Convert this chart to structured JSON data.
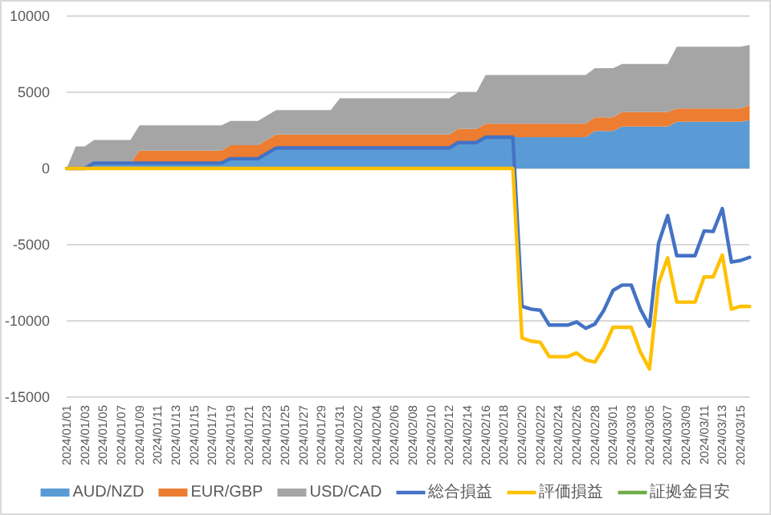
{
  "chart_data": {
    "type": "area",
    "stacked": true,
    "grid": "y",
    "legend": "bottom",
    "ylim": [
      -15000,
      10000
    ],
    "yticks": [
      -15000,
      -10000,
      -5000,
      0,
      5000,
      10000
    ],
    "categories": [
      "2024/01/01",
      null,
      "2024/01/03",
      null,
      "2024/01/05",
      null,
      "2024/01/07",
      null,
      "2024/01/09",
      null,
      "2024/01/11",
      null,
      "2024/01/13",
      null,
      "2024/01/15",
      null,
      "2024/01/17",
      null,
      "2024/01/19",
      null,
      "2024/01/21",
      null,
      "2024/01/23",
      null,
      "2024/01/25",
      null,
      "2024/01/27",
      null,
      "2024/01/29",
      null,
      "2024/01/31",
      null,
      "2024/02/02",
      null,
      "2024/02/04",
      null,
      "2024/02/06",
      null,
      "2024/02/08",
      null,
      "2024/02/10",
      null,
      "2024/02/12",
      null,
      "2024/02/14",
      null,
      "2024/02/16",
      null,
      "2024/02/18",
      null,
      "2024/02/20",
      null,
      "2024/02/22",
      null,
      "2024/02/24",
      null,
      "2024/02/26",
      null,
      "2024/02/28",
      null,
      "2024/03/01",
      null,
      "2024/03/03",
      null,
      "2024/03/05",
      null,
      "2024/03/07",
      null,
      "2024/03/09",
      null,
      "2024/03/11",
      null,
      "2024/03/13",
      null,
      "2024/03/15",
      null
    ],
    "series": [
      {
        "name": "AUD/NZD",
        "color": "#5b9bd5",
        "values": [
          0,
          0,
          0,
          350,
          350,
          350,
          350,
          350,
          350,
          350,
          350,
          350,
          350,
          350,
          350,
          350,
          350,
          350,
          640,
          640,
          640,
          640,
          990,
          1340,
          1340,
          1340,
          1340,
          1340,
          1340,
          1340,
          1340,
          1340,
          1340,
          1340,
          1340,
          1340,
          1340,
          1340,
          1340,
          1340,
          1340,
          1340,
          1340,
          1700,
          1700,
          1700,
          2050,
          2050,
          2050,
          2050,
          2050,
          2050,
          2050,
          2050,
          2050,
          2050,
          2050,
          2050,
          2460,
          2460,
          2460,
          2750,
          2750,
          2750,
          2750,
          2750,
          2750,
          3060,
          3060,
          3060,
          3060,
          3060,
          3060,
          3060,
          3060,
          3170
        ]
      },
      {
        "name": "EUR/GBP",
        "color": "#ed7d31",
        "values": [
          0,
          0,
          0,
          0,
          0,
          0,
          0,
          0,
          820,
          820,
          820,
          820,
          820,
          820,
          820,
          820,
          820,
          820,
          880,
          880,
          880,
          880,
          885,
          890,
          890,
          890,
          890,
          890,
          890,
          890,
          890,
          890,
          890,
          890,
          890,
          890,
          890,
          890,
          890,
          890,
          890,
          890,
          890,
          890,
          890,
          890,
          890,
          890,
          890,
          890,
          890,
          890,
          890,
          890,
          890,
          890,
          890,
          890,
          890,
          890,
          890,
          950,
          950,
          950,
          950,
          950,
          950,
          880,
          880,
          880,
          880,
          880,
          880,
          880,
          880,
          980
        ]
      },
      {
        "name": "USD/CAD",
        "color": "#a5a5a5",
        "values": [
          0,
          1450,
          1450,
          1520,
          1520,
          1520,
          1520,
          1520,
          1660,
          1660,
          1660,
          1660,
          1660,
          1660,
          1660,
          1660,
          1660,
          1660,
          1600,
          1600,
          1600,
          1600,
          1605,
          1600,
          1600,
          1600,
          1600,
          1600,
          1600,
          1600,
          2370,
          2370,
          2370,
          2370,
          2370,
          2370,
          2370,
          2370,
          2370,
          2370,
          2370,
          2370,
          2370,
          2410,
          2410,
          2410,
          3190,
          3190,
          3190,
          3190,
          3190,
          3190,
          3190,
          3190,
          3190,
          3190,
          3190,
          3190,
          3230,
          3230,
          3230,
          3160,
          3160,
          3160,
          3160,
          3160,
          3160,
          4050,
          4050,
          4050,
          4050,
          4050,
          4050,
          4050,
          4050,
          3950
        ]
      },
      {
        "name": "総合損益",
        "type": "line",
        "color": "#4472c4",
        "values": [
          0,
          0,
          0,
          350,
          350,
          350,
          350,
          350,
          350,
          350,
          350,
          350,
          350,
          350,
          350,
          350,
          350,
          350,
          640,
          640,
          640,
          640,
          990,
          1340,
          1340,
          1340,
          1340,
          1340,
          1340,
          1340,
          1340,
          1340,
          1340,
          1340,
          1340,
          1340,
          1340,
          1340,
          1340,
          1340,
          1340,
          1340,
          1340,
          1700,
          1700,
          1700,
          2050,
          2050,
          2050,
          2050,
          -9050,
          -9230,
          -9300,
          -10280,
          -10280,
          -10280,
          -10070,
          -10490,
          -10210,
          -9300,
          -8000,
          -7650,
          -7650,
          -9230,
          -10350,
          -4910,
          -3090,
          -5720,
          -5720,
          -5720,
          -4100,
          -4140,
          -2630,
          -6140,
          -6040,
          -5830
        ]
      },
      {
        "name": "評価損益",
        "type": "line",
        "color": "#ffc000",
        "values": [
          0,
          0,
          0,
          0,
          0,
          0,
          0,
          0,
          0,
          0,
          0,
          0,
          0,
          0,
          0,
          0,
          0,
          0,
          0,
          0,
          0,
          0,
          0,
          0,
          0,
          0,
          0,
          0,
          0,
          0,
          0,
          0,
          0,
          0,
          0,
          0,
          0,
          0,
          0,
          0,
          0,
          0,
          0,
          0,
          0,
          0,
          0,
          0,
          0,
          0,
          -11120,
          -11330,
          -11400,
          -12350,
          -12350,
          -12350,
          -12100,
          -12560,
          -12700,
          -11750,
          -10420,
          -10420,
          -10420,
          -12040,
          -13160,
          -7540,
          -5860,
          -8770,
          -8770,
          -8770,
          -7120,
          -7120,
          -5680,
          -9230,
          -9050,
          -9050
        ]
      },
      {
        "name": "証拠金目安",
        "type": "line",
        "color": "#70ad47",
        "values": [
          null,
          null,
          null,
          null,
          null,
          null,
          null,
          null,
          null,
          null,
          null,
          null,
          null,
          null,
          null,
          null,
          null,
          null,
          null,
          null,
          null,
          null,
          null,
          null,
          null,
          null,
          null,
          null,
          null,
          null,
          null,
          null,
          null,
          null,
          null,
          null,
          null,
          null,
          null,
          null,
          null,
          null,
          null,
          null,
          null,
          null,
          null,
          null,
          null,
          null,
          null,
          null,
          null,
          null,
          null,
          null,
          null,
          null,
          null,
          null,
          null,
          null,
          null,
          null,
          null,
          null,
          null,
          null,
          null,
          null,
          null,
          null,
          null,
          null,
          null,
          null
        ]
      }
    ]
  }
}
